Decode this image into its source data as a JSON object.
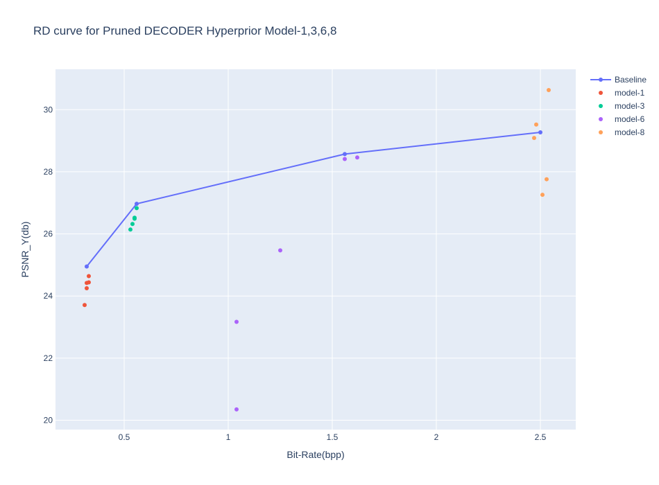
{
  "chart_data": {
    "type": "scatter",
    "title": "RD curve for Pruned DECODER Hyperprior Model-1,3,6,8",
    "xlabel": "Bit-Rate(bpp)",
    "ylabel": "PSNR_Y(db)",
    "xlim": [
      0.17,
      2.67
    ],
    "ylim": [
      19.7,
      31.3
    ],
    "x_ticks": [
      0.5,
      1,
      1.5,
      2,
      2.5
    ],
    "x_tick_labels": [
      "0.5",
      "1",
      "1.5",
      "2",
      "2.5"
    ],
    "y_ticks": [
      20,
      22,
      24,
      26,
      28,
      30
    ],
    "y_tick_labels": [
      "20",
      "22",
      "24",
      "26",
      "28",
      "30"
    ],
    "grid": true,
    "legend_position": "top-right",
    "series": [
      {
        "name": "Baseline",
        "mode": "lines+markers",
        "color": "#636efa",
        "x": [
          0.32,
          0.56,
          1.56,
          2.5
        ],
        "y": [
          24.95,
          26.97,
          28.57,
          29.27
        ]
      },
      {
        "name": "model-1",
        "mode": "markers",
        "color": "#ef553b",
        "x": [
          0.31,
          0.32,
          0.32,
          0.33,
          0.33
        ],
        "y": [
          23.71,
          24.25,
          24.42,
          24.44,
          24.64
        ]
      },
      {
        "name": "model-3",
        "mode": "markers",
        "color": "#00cc96",
        "x": [
          0.53,
          0.54,
          0.55,
          0.55,
          0.56
        ],
        "y": [
          26.14,
          26.32,
          26.49,
          26.52,
          26.83
        ]
      },
      {
        "name": "model-6",
        "mode": "markers",
        "color": "#ab63fa",
        "x": [
          1.04,
          1.04,
          1.25,
          1.56,
          1.62
        ],
        "y": [
          20.35,
          23.17,
          25.47,
          28.41,
          28.46
        ]
      },
      {
        "name": "model-8",
        "mode": "markers",
        "color": "#ffa15a",
        "x": [
          2.47,
          2.48,
          2.51,
          2.53,
          2.54
        ],
        "y": [
          29.09,
          29.52,
          27.26,
          27.76,
          30.63
        ]
      }
    ]
  }
}
